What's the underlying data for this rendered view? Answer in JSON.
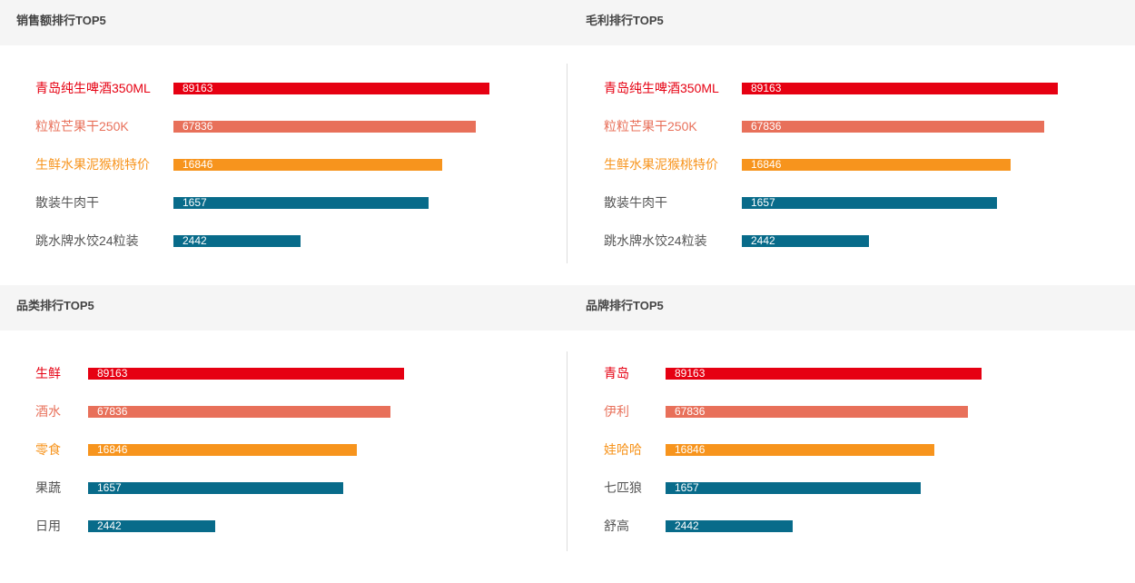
{
  "chart_data": [
    {
      "type": "bar",
      "orientation": "horizontal",
      "title": "销售额排行TOP5",
      "categories": [
        "青岛纯生啤酒350ML",
        "粒粒芒果干250K",
        "生鲜水果泥猴桃特价",
        "散装牛肉干",
        "跳水牌水饺24粒装"
      ],
      "values": [
        89163,
        67836,
        16846,
        1657,
        2442
      ],
      "bar_fraction": [
        1.0,
        0.957,
        0.851,
        0.807,
        0.402
      ],
      "colors": [
        "#e60012",
        "#e8705a",
        "#f7941d",
        "#086b8a",
        "#086b8a"
      ],
      "label_colors": [
        "#e60012",
        "#e8705a",
        "#f7941d",
        "#555555",
        "#555555"
      ]
    },
    {
      "type": "bar",
      "orientation": "horizontal",
      "title": "毛利排行TOP5",
      "categories": [
        "青岛纯生啤酒350ML",
        "粒粒芒果干250K",
        "生鲜水果泥猴桃特价",
        "散装牛肉干",
        "跳水牌水饺24粒装"
      ],
      "values": [
        89163,
        67836,
        16846,
        1657,
        2442
      ],
      "bar_fraction": [
        1.0,
        0.957,
        0.851,
        0.807,
        0.402
      ],
      "colors": [
        "#e60012",
        "#e8705a",
        "#f7941d",
        "#086b8a",
        "#086b8a"
      ],
      "label_colors": [
        "#e60012",
        "#e8705a",
        "#f7941d",
        "#555555",
        "#555555"
      ]
    },
    {
      "type": "bar",
      "orientation": "horizontal",
      "title": "品类排行TOP5",
      "categories": [
        "生鲜",
        "酒水",
        "零食",
        "果蔬",
        "日用"
      ],
      "values": [
        89163,
        67836,
        16846,
        1657,
        2442
      ],
      "bar_fraction": [
        1.0,
        0.957,
        0.851,
        0.807,
        0.402
      ],
      "colors": [
        "#e60012",
        "#e8705a",
        "#f7941d",
        "#086b8a",
        "#086b8a"
      ],
      "label_colors": [
        "#e60012",
        "#e8705a",
        "#f7941d",
        "#555555",
        "#555555"
      ]
    },
    {
      "type": "bar",
      "orientation": "horizontal",
      "title": "品牌排行TOP5",
      "categories": [
        "青岛",
        "伊利",
        "娃哈哈",
        "七匹狼",
        "舒高"
      ],
      "values": [
        89163,
        67836,
        16846,
        1657,
        2442
      ],
      "bar_fraction": [
        1.0,
        0.957,
        0.851,
        0.807,
        0.402
      ],
      "colors": [
        "#e60012",
        "#e8705a",
        "#f7941d",
        "#086b8a",
        "#086b8a"
      ],
      "label_colors": [
        "#e60012",
        "#e8705a",
        "#f7941d",
        "#555555",
        "#555555"
      ]
    }
  ]
}
